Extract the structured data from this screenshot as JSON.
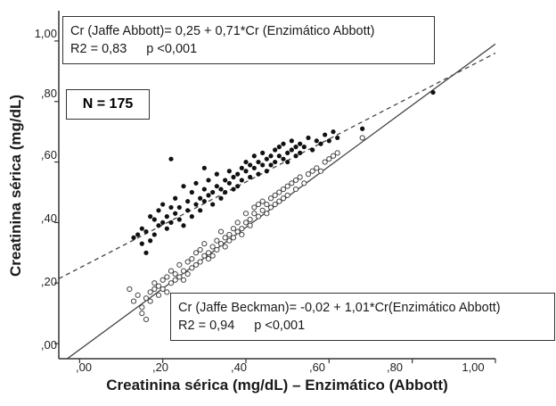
{
  "chart_data": {
    "type": "scatter",
    "xlabel": "Creatinina sérica (mg/dL) – Enzimático (Abbott)",
    "ylabel": "Creatinina sérica (mg/dL)",
    "xlim": [
      -0.05,
      1.0
    ],
    "ylim": [
      -0.05,
      1.1
    ],
    "x_ticks": [
      ",00",
      ",20",
      ",40",
      ",60",
      ",80",
      "1,00"
    ],
    "y_ticks": [
      ",00",
      ",20",
      ",40",
      ",60",
      ",80",
      "1,00"
    ],
    "x_tick_values": [
      0,
      0.2,
      0.4,
      0.6,
      0.8,
      1.0
    ],
    "y_tick_values": [
      0,
      0.2,
      0.4,
      0.6,
      0.8,
      1.0
    ],
    "grid": false,
    "n_label": "N = 175",
    "fits": [
      {
        "equation": "Cr (Jaffe Abbott)= 0,25 + 0,71*Cr (Enzimático Abbott)",
        "r2_label": "R",
        "r2_value": "2 = 0,83",
        "p": "p <0,001",
        "intercept": 0.25,
        "slope": 0.71,
        "style": "dashed"
      },
      {
        "equation": "Cr (Jaffe Beckman)= -0,02 + 1,01*Cr(Enzimático Abbott)",
        "r2_label": "R",
        "r2_value": "2 = 0,94",
        "p": "p <0,001",
        "intercept": -0.02,
        "slope": 1.01,
        "style": "solid"
      }
    ],
    "series": [
      {
        "marker": "filled",
        "points": [
          [
            0.13,
            0.35
          ],
          [
            0.14,
            0.36
          ],
          [
            0.15,
            0.33
          ],
          [
            0.15,
            0.38
          ],
          [
            0.16,
            0.37
          ],
          [
            0.16,
            0.3
          ],
          [
            0.17,
            0.42
          ],
          [
            0.17,
            0.34
          ],
          [
            0.18,
            0.41
          ],
          [
            0.18,
            0.36
          ],
          [
            0.19,
            0.44
          ],
          [
            0.19,
            0.39
          ],
          [
            0.2,
            0.4
          ],
          [
            0.2,
            0.46
          ],
          [
            0.21,
            0.42
          ],
          [
            0.21,
            0.38
          ],
          [
            0.22,
            0.45
          ],
          [
            0.22,
            0.4
          ],
          [
            0.22,
            0.61
          ],
          [
            0.23,
            0.43
          ],
          [
            0.23,
            0.48
          ],
          [
            0.24,
            0.41
          ],
          [
            0.24,
            0.45
          ],
          [
            0.25,
            0.52
          ],
          [
            0.25,
            0.39
          ],
          [
            0.26,
            0.47
          ],
          [
            0.26,
            0.44
          ],
          [
            0.27,
            0.5
          ],
          [
            0.27,
            0.42
          ],
          [
            0.28,
            0.46
          ],
          [
            0.28,
            0.53
          ],
          [
            0.29,
            0.48
          ],
          [
            0.29,
            0.44
          ],
          [
            0.3,
            0.51
          ],
          [
            0.3,
            0.47
          ],
          [
            0.3,
            0.58
          ],
          [
            0.31,
            0.49
          ],
          [
            0.31,
            0.54
          ],
          [
            0.32,
            0.5
          ],
          [
            0.32,
            0.46
          ],
          [
            0.33,
            0.52
          ],
          [
            0.33,
            0.56
          ],
          [
            0.34,
            0.51
          ],
          [
            0.34,
            0.48
          ],
          [
            0.35,
            0.54
          ],
          [
            0.35,
            0.5
          ],
          [
            0.36,
            0.53
          ],
          [
            0.36,
            0.57
          ],
          [
            0.37,
            0.55
          ],
          [
            0.37,
            0.51
          ],
          [
            0.38,
            0.56
          ],
          [
            0.38,
            0.52
          ],
          [
            0.39,
            0.58
          ],
          [
            0.39,
            0.54
          ],
          [
            0.4,
            0.57
          ],
          [
            0.4,
            0.6
          ],
          [
            0.41,
            0.55
          ],
          [
            0.41,
            0.59
          ],
          [
            0.42,
            0.58
          ],
          [
            0.42,
            0.62
          ],
          [
            0.43,
            0.56
          ],
          [
            0.43,
            0.6
          ],
          [
            0.44,
            0.59
          ],
          [
            0.44,
            0.63
          ],
          [
            0.45,
            0.61
          ],
          [
            0.45,
            0.57
          ],
          [
            0.46,
            0.62
          ],
          [
            0.46,
            0.59
          ],
          [
            0.47,
            0.6
          ],
          [
            0.47,
            0.64
          ],
          [
            0.48,
            0.62
          ],
          [
            0.48,
            0.65
          ],
          [
            0.49,
            0.61
          ],
          [
            0.49,
            0.66
          ],
          [
            0.5,
            0.63
          ],
          [
            0.5,
            0.6
          ],
          [
            0.51,
            0.64
          ],
          [
            0.51,
            0.67
          ],
          [
            0.52,
            0.62
          ],
          [
            0.52,
            0.65
          ],
          [
            0.53,
            0.66
          ],
          [
            0.53,
            0.63
          ],
          [
            0.54,
            0.65
          ],
          [
            0.55,
            0.68
          ],
          [
            0.56,
            0.64
          ],
          [
            0.57,
            0.67
          ],
          [
            0.58,
            0.66
          ],
          [
            0.59,
            0.69
          ],
          [
            0.6,
            0.67
          ],
          [
            0.61,
            0.7
          ],
          [
            0.62,
            0.68
          ],
          [
            0.68,
            0.71
          ],
          [
            0.85,
            0.83
          ]
        ]
      },
      {
        "marker": "open",
        "points": [
          [
            0.12,
            0.18
          ],
          [
            0.13,
            0.14
          ],
          [
            0.14,
            0.16
          ],
          [
            0.15,
            0.12
          ],
          [
            0.15,
            0.1
          ],
          [
            0.16,
            0.15
          ],
          [
            0.16,
            0.08
          ],
          [
            0.17,
            0.17
          ],
          [
            0.17,
            0.14
          ],
          [
            0.18,
            0.18
          ],
          [
            0.18,
            0.2
          ],
          [
            0.19,
            0.16
          ],
          [
            0.19,
            0.19
          ],
          [
            0.2,
            0.21
          ],
          [
            0.2,
            0.18
          ],
          [
            0.21,
            0.22
          ],
          [
            0.21,
            0.17
          ],
          [
            0.22,
            0.2
          ],
          [
            0.22,
            0.24
          ],
          [
            0.23,
            0.21
          ],
          [
            0.23,
            0.23
          ],
          [
            0.24,
            0.22
          ],
          [
            0.24,
            0.26
          ],
          [
            0.25,
            0.24
          ],
          [
            0.25,
            0.21
          ],
          [
            0.26,
            0.27
          ],
          [
            0.26,
            0.23
          ],
          [
            0.27,
            0.28
          ],
          [
            0.27,
            0.25
          ],
          [
            0.28,
            0.26
          ],
          [
            0.28,
            0.3
          ],
          [
            0.29,
            0.27
          ],
          [
            0.29,
            0.31
          ],
          [
            0.3,
            0.29
          ],
          [
            0.3,
            0.33
          ],
          [
            0.31,
            0.3
          ],
          [
            0.31,
            0.28
          ],
          [
            0.32,
            0.32
          ],
          [
            0.32,
            0.29
          ],
          [
            0.33,
            0.34
          ],
          [
            0.33,
            0.31
          ],
          [
            0.34,
            0.33
          ],
          [
            0.34,
            0.37
          ],
          [
            0.35,
            0.35
          ],
          [
            0.35,
            0.32
          ],
          [
            0.36,
            0.36
          ],
          [
            0.36,
            0.34
          ],
          [
            0.37,
            0.38
          ],
          [
            0.37,
            0.35
          ],
          [
            0.38,
            0.37
          ],
          [
            0.38,
            0.4
          ],
          [
            0.39,
            0.38
          ],
          [
            0.39,
            0.36
          ],
          [
            0.4,
            0.4
          ],
          [
            0.4,
            0.43
          ],
          [
            0.41,
            0.41
          ],
          [
            0.41,
            0.39
          ],
          [
            0.42,
            0.43
          ],
          [
            0.42,
            0.45
          ],
          [
            0.43,
            0.42
          ],
          [
            0.43,
            0.46
          ],
          [
            0.44,
            0.44
          ],
          [
            0.44,
            0.47
          ],
          [
            0.45,
            0.46
          ],
          [
            0.45,
            0.43
          ],
          [
            0.46,
            0.48
          ],
          [
            0.46,
            0.45
          ],
          [
            0.47,
            0.49
          ],
          [
            0.47,
            0.46
          ],
          [
            0.48,
            0.5
          ],
          [
            0.48,
            0.47
          ],
          [
            0.49,
            0.51
          ],
          [
            0.49,
            0.48
          ],
          [
            0.5,
            0.52
          ],
          [
            0.5,
            0.49
          ],
          [
            0.51,
            0.53
          ],
          [
            0.52,
            0.51
          ],
          [
            0.52,
            0.54
          ],
          [
            0.53,
            0.55
          ],
          [
            0.54,
            0.53
          ],
          [
            0.55,
            0.56
          ],
          [
            0.56,
            0.57
          ],
          [
            0.57,
            0.58
          ],
          [
            0.58,
            0.57
          ],
          [
            0.59,
            0.6
          ],
          [
            0.6,
            0.61
          ],
          [
            0.61,
            0.62
          ],
          [
            0.62,
            0.63
          ],
          [
            0.68,
            0.68
          ]
        ]
      }
    ]
  }
}
